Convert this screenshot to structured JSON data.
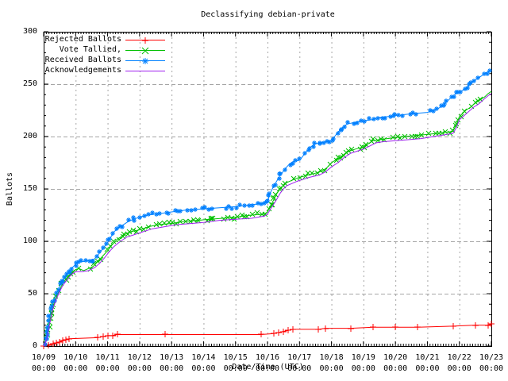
{
  "chart_data": {
    "type": "line",
    "title": "Declassifying debian-private",
    "xlabel": "Date/Time (UTC)",
    "ylabel": "Ballots",
    "ylim": [
      0,
      300
    ],
    "yticks": [
      0,
      50,
      100,
      150,
      200,
      250,
      300
    ],
    "x_range_days": [
      0,
      14
    ],
    "xticks": [
      {
        "date": "10/09",
        "time": "00:00"
      },
      {
        "date": "10/10",
        "time": "00:00"
      },
      {
        "date": "10/11",
        "time": "00:00"
      },
      {
        "date": "10/12",
        "time": "00:00"
      },
      {
        "date": "10/13",
        "time": "00:00"
      },
      {
        "date": "10/14",
        "time": "00:00"
      },
      {
        "date": "10/15",
        "time": "00:00"
      },
      {
        "date": "10/16",
        "time": "00:00"
      },
      {
        "date": "10/17",
        "time": "00:00"
      },
      {
        "date": "10/18",
        "time": "00:00"
      },
      {
        "date": "10/19",
        "time": "00:00"
      },
      {
        "date": "10/20",
        "time": "00:00"
      },
      {
        "date": "10/21",
        "time": "00:00"
      },
      {
        "date": "10/22",
        "time": "00:00"
      },
      {
        "date": "10/23",
        "time": "00:00"
      }
    ],
    "grid": true,
    "legend_position": "top-left",
    "colors": {
      "background": "#ffffff",
      "axis": "#000000",
      "grid": "#a6a6a6"
    },
    "series": [
      {
        "name": "Rejected Ballots",
        "color": "#ff0000",
        "marker": "plus",
        "marker_layout": "points",
        "points": [
          [
            0,
            0
          ],
          [
            0.15,
            1
          ],
          [
            0.3,
            2
          ],
          [
            0.4,
            3
          ],
          [
            0.5,
            4
          ],
          [
            0.6,
            5
          ],
          [
            0.7,
            6
          ],
          [
            0.8,
            7
          ],
          [
            1.7,
            8
          ],
          [
            1.85,
            9
          ],
          [
            2.0,
            10
          ],
          [
            2.15,
            10
          ],
          [
            2.3,
            11
          ],
          [
            3.8,
            11
          ],
          [
            6.8,
            11
          ],
          [
            7.2,
            12
          ],
          [
            7.35,
            13
          ],
          [
            7.5,
            14
          ],
          [
            7.65,
            15
          ],
          [
            7.8,
            16
          ],
          [
            8.6,
            16
          ],
          [
            8.8,
            17
          ],
          [
            9.6,
            17
          ],
          [
            10.3,
            18
          ],
          [
            11.0,
            18
          ],
          [
            11.7,
            18
          ],
          [
            12.8,
            19
          ],
          [
            13.5,
            20
          ],
          [
            13.9,
            20
          ],
          [
            14,
            21
          ]
        ]
      },
      {
        "name": "Vote Tallied,",
        "color": "#00c000",
        "marker": "cross",
        "marker_layout": "band",
        "points": [
          [
            0,
            0
          ],
          [
            0.05,
            2
          ],
          [
            0.1,
            8
          ],
          [
            0.15,
            17
          ],
          [
            0.2,
            25
          ],
          [
            0.25,
            32
          ],
          [
            0.3,
            39
          ],
          [
            0.4,
            47
          ],
          [
            0.5,
            54
          ],
          [
            0.6,
            60
          ],
          [
            0.7,
            64
          ],
          [
            0.8,
            68
          ],
          [
            0.9,
            71
          ],
          [
            1.0,
            73
          ],
          [
            1.1,
            74
          ],
          [
            1.25,
            72
          ],
          [
            1.4,
            74
          ],
          [
            1.55,
            76
          ],
          [
            1.7,
            81
          ],
          [
            1.85,
            86
          ],
          [
            2.0,
            91
          ],
          [
            2.15,
            97
          ],
          [
            2.3,
            102
          ],
          [
            2.5,
            106
          ],
          [
            2.7,
            109
          ],
          [
            3.0,
            111
          ],
          [
            3.3,
            114
          ],
          [
            3.6,
            116
          ],
          [
            4.0,
            117
          ],
          [
            4.4,
            119
          ],
          [
            4.8,
            120
          ],
          [
            5.2,
            121
          ],
          [
            5.6,
            122
          ],
          [
            6.0,
            123
          ],
          [
            6.5,
            125
          ],
          [
            6.9,
            126
          ],
          [
            7.0,
            128
          ],
          [
            7.1,
            134
          ],
          [
            7.2,
            140
          ],
          [
            7.3,
            146
          ],
          [
            7.4,
            150
          ],
          [
            7.5,
            153
          ],
          [
            7.6,
            156
          ],
          [
            7.75,
            158
          ],
          [
            7.9,
            160
          ],
          [
            8.0,
            161
          ],
          [
            8.25,
            163
          ],
          [
            8.5,
            165
          ],
          [
            8.7,
            167
          ],
          [
            8.85,
            170
          ],
          [
            9.0,
            175
          ],
          [
            9.1,
            177
          ],
          [
            9.25,
            180
          ],
          [
            9.4,
            183
          ],
          [
            9.55,
            186
          ],
          [
            9.75,
            188
          ],
          [
            10.0,
            190
          ],
          [
            10.15,
            193
          ],
          [
            10.3,
            196
          ],
          [
            10.5,
            197
          ],
          [
            10.75,
            198
          ],
          [
            11.0,
            199
          ],
          [
            11.3,
            200
          ],
          [
            11.6,
            201
          ],
          [
            12.0,
            202
          ],
          [
            12.3,
            203
          ],
          [
            12.6,
            204
          ],
          [
            12.8,
            205
          ],
          [
            12.9,
            211
          ],
          [
            13.0,
            219
          ],
          [
            13.1,
            222
          ],
          [
            13.2,
            225
          ],
          [
            13.35,
            228
          ],
          [
            13.5,
            232
          ],
          [
            13.65,
            235
          ],
          [
            13.8,
            238
          ],
          [
            13.9,
            241
          ],
          [
            14,
            243
          ]
        ]
      },
      {
        "name": "Received Ballots",
        "color": "#0080ff",
        "marker": "asterisk",
        "marker_layout": "band",
        "points": [
          [
            0,
            0
          ],
          [
            0.05,
            4
          ],
          [
            0.1,
            12
          ],
          [
            0.15,
            22
          ],
          [
            0.2,
            30
          ],
          [
            0.25,
            37
          ],
          [
            0.3,
            43
          ],
          [
            0.4,
            50
          ],
          [
            0.5,
            57
          ],
          [
            0.6,
            62
          ],
          [
            0.7,
            67
          ],
          [
            0.8,
            71
          ],
          [
            0.9,
            75
          ],
          [
            1.0,
            78
          ],
          [
            1.1,
            80
          ],
          [
            1.3,
            81
          ],
          [
            1.55,
            82
          ],
          [
            1.7,
            87
          ],
          [
            1.8,
            91
          ],
          [
            1.9,
            95
          ],
          [
            2.0,
            99
          ],
          [
            2.1,
            104
          ],
          [
            2.2,
            109
          ],
          [
            2.35,
            113
          ],
          [
            2.5,
            116
          ],
          [
            2.65,
            119
          ],
          [
            2.8,
            121
          ],
          [
            3.0,
            123
          ],
          [
            3.25,
            125
          ],
          [
            3.5,
            126
          ],
          [
            3.75,
            127
          ],
          [
            4.0,
            128
          ],
          [
            4.5,
            130
          ],
          [
            5.0,
            131
          ],
          [
            5.5,
            132
          ],
          [
            6.0,
            133
          ],
          [
            6.5,
            135
          ],
          [
            6.9,
            136
          ],
          [
            7.0,
            138
          ],
          [
            7.1,
            147
          ],
          [
            7.2,
            153
          ],
          [
            7.3,
            158
          ],
          [
            7.4,
            163
          ],
          [
            7.5,
            167
          ],
          [
            7.6,
            171
          ],
          [
            7.7,
            174
          ],
          [
            7.8,
            176
          ],
          [
            7.95,
            177
          ],
          [
            8.05,
            179
          ],
          [
            8.15,
            183
          ],
          [
            8.25,
            187
          ],
          [
            8.35,
            190
          ],
          [
            8.5,
            193
          ],
          [
            8.65,
            194
          ],
          [
            8.8,
            195
          ],
          [
            9.0,
            196
          ],
          [
            9.1,
            200
          ],
          [
            9.2,
            204
          ],
          [
            9.3,
            207
          ],
          [
            9.4,
            210
          ],
          [
            9.5,
            212
          ],
          [
            9.65,
            213
          ],
          [
            9.8,
            214
          ],
          [
            10.0,
            215
          ],
          [
            10.25,
            216
          ],
          [
            10.5,
            218
          ],
          [
            10.75,
            219
          ],
          [
            11.0,
            220
          ],
          [
            11.3,
            221
          ],
          [
            11.6,
            222
          ],
          [
            12.0,
            223
          ],
          [
            12.2,
            225
          ],
          [
            12.35,
            227
          ],
          [
            12.5,
            230
          ],
          [
            12.6,
            233
          ],
          [
            12.7,
            236
          ],
          [
            12.8,
            239
          ],
          [
            12.9,
            241
          ],
          [
            13.0,
            242
          ],
          [
            13.1,
            244
          ],
          [
            13.2,
            246
          ],
          [
            13.3,
            249
          ],
          [
            13.4,
            252
          ],
          [
            13.5,
            254
          ],
          [
            13.6,
            256
          ],
          [
            13.7,
            258
          ],
          [
            13.8,
            260
          ],
          [
            13.9,
            262
          ],
          [
            14,
            264
          ]
        ]
      },
      {
        "name": "Acknowledgements",
        "color": "#a020f0",
        "marker": "none",
        "marker_layout": "none",
        "points": [
          [
            0,
            0
          ],
          [
            0.05,
            2
          ],
          [
            0.1,
            7
          ],
          [
            0.15,
            15
          ],
          [
            0.2,
            23
          ],
          [
            0.25,
            30
          ],
          [
            0.3,
            37
          ],
          [
            0.4,
            45
          ],
          [
            0.5,
            52
          ],
          [
            0.6,
            58
          ],
          [
            0.7,
            62
          ],
          [
            0.8,
            66
          ],
          [
            0.9,
            69
          ],
          [
            1.0,
            71
          ],
          [
            1.2,
            71
          ],
          [
            1.4,
            72
          ],
          [
            1.6,
            75
          ],
          [
            1.75,
            79
          ],
          [
            1.9,
            84
          ],
          [
            2.05,
            90
          ],
          [
            2.2,
            95
          ],
          [
            2.4,
            100
          ],
          [
            2.6,
            104
          ],
          [
            2.8,
            106
          ],
          [
            3.0,
            108
          ],
          [
            3.4,
            112
          ],
          [
            3.8,
            114
          ],
          [
            4.2,
            116
          ],
          [
            4.6,
            117
          ],
          [
            5.0,
            118
          ],
          [
            5.5,
            120
          ],
          [
            6.0,
            121
          ],
          [
            6.5,
            122
          ],
          [
            6.9,
            124
          ],
          [
            7.0,
            126
          ],
          [
            7.1,
            131
          ],
          [
            7.25,
            138
          ],
          [
            7.4,
            146
          ],
          [
            7.5,
            150
          ],
          [
            7.6,
            153
          ],
          [
            7.75,
            155
          ],
          [
            7.9,
            157
          ],
          [
            8.0,
            158
          ],
          [
            8.3,
            161
          ],
          [
            8.6,
            163
          ],
          [
            8.8,
            166
          ],
          [
            9.0,
            171
          ],
          [
            9.2,
            175
          ],
          [
            9.4,
            180
          ],
          [
            9.6,
            184
          ],
          [
            9.8,
            186
          ],
          [
            10.0,
            188
          ],
          [
            10.2,
            191
          ],
          [
            10.4,
            194
          ],
          [
            10.6,
            195
          ],
          [
            11.0,
            196
          ],
          [
            11.4,
            197
          ],
          [
            11.8,
            198
          ],
          [
            12.2,
            200
          ],
          [
            12.6,
            202
          ],
          [
            12.8,
            203
          ],
          [
            12.9,
            208
          ],
          [
            13.0,
            216
          ],
          [
            13.15,
            220
          ],
          [
            13.3,
            224
          ],
          [
            13.45,
            228
          ],
          [
            13.6,
            231
          ],
          [
            13.75,
            235
          ],
          [
            13.9,
            239
          ],
          [
            14,
            241
          ]
        ]
      }
    ]
  }
}
